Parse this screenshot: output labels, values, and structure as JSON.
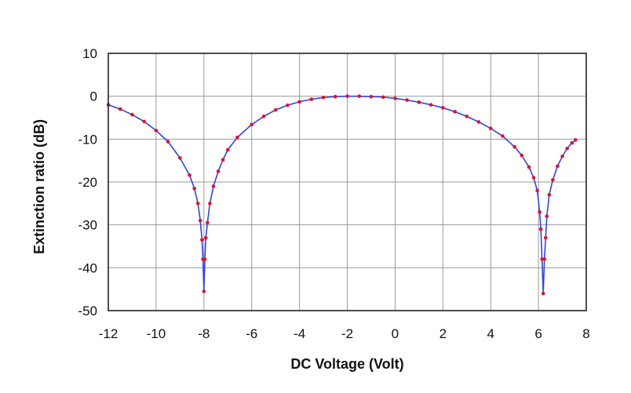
{
  "chart_data": {
    "type": "line",
    "title": "",
    "xlabel": "DC Voltage (Volt)",
    "ylabel": "Extinction ratio (dB)",
    "xlim": [
      -12,
      8
    ],
    "ylim": [
      -50,
      10
    ],
    "x_ticks": [
      "-12",
      "-10",
      "-8",
      "-6",
      "-4",
      "-2",
      "0",
      "2",
      "4",
      "6",
      "8"
    ],
    "y_ticks": [
      "10",
      "0",
      "-10",
      "-20",
      "-30",
      "-40",
      "-50"
    ],
    "grid": true,
    "legend": "none",
    "colors": {
      "line": "#3344dd",
      "marker": "#dd1133",
      "grid": "#9a9a9a",
      "frame": "#222222"
    },
    "series": [
      {
        "x": [
          -12.0,
          -11.5,
          -11.0,
          -10.5,
          -10.0,
          -9.5,
          -9.0,
          -8.6,
          -8.4,
          -8.25,
          -8.15,
          -8.08,
          -8.04,
          -8.0,
          -7.96,
          -7.92,
          -7.85,
          -7.75,
          -7.6,
          -7.4,
          -7.2,
          -7.0,
          -6.6,
          -6.0,
          -5.5,
          -5.0,
          -4.5,
          -4.0,
          -3.5,
          -3.0,
          -2.5,
          -2.0,
          -1.5,
          -1.0,
          -0.5,
          0.0,
          0.5,
          1.0,
          1.5,
          2.0,
          2.5,
          3.0,
          3.5,
          4.0,
          4.5,
          5.0,
          5.3,
          5.6,
          5.8,
          5.95,
          6.05,
          6.1,
          6.15,
          6.2,
          6.25,
          6.3,
          6.35,
          6.45,
          6.6,
          6.8,
          7.0,
          7.2,
          7.4,
          7.55
        ],
        "y": [
          -2.0,
          -3.0,
          -4.3,
          -5.9,
          -8.0,
          -10.6,
          -14.4,
          -18.4,
          -21.5,
          -25.0,
          -29.0,
          -33.5,
          -38.0,
          -45.5,
          -38.0,
          -33.0,
          -29.5,
          -25.0,
          -21.0,
          -17.5,
          -14.8,
          -12.5,
          -9.6,
          -6.6,
          -4.7,
          -3.2,
          -2.1,
          -1.3,
          -0.7,
          -0.3,
          -0.1,
          0.0,
          0.0,
          -0.1,
          -0.2,
          -0.5,
          -0.9,
          -1.4,
          -2.0,
          -2.7,
          -3.6,
          -4.7,
          -6.0,
          -7.5,
          -9.3,
          -11.8,
          -13.8,
          -16.5,
          -19.0,
          -22.0,
          -27.0,
          -31.0,
          -38.0,
          -46.0,
          -38.0,
          -33.0,
          -28.0,
          -23.0,
          -19.5,
          -16.3,
          -14.0,
          -12.2,
          -10.9,
          -10.2
        ]
      }
    ]
  }
}
